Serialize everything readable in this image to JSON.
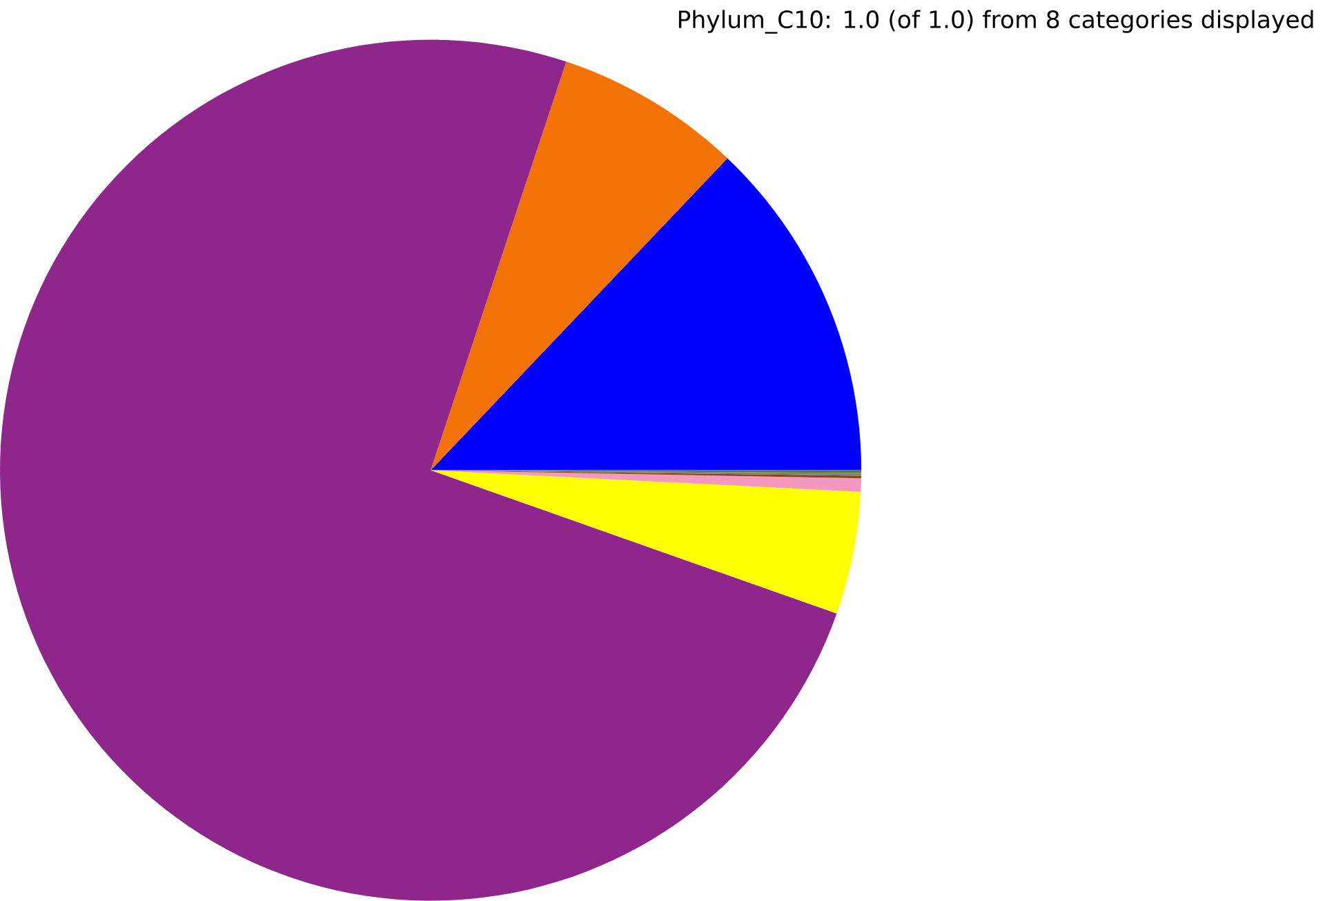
{
  "chart_data": {
    "type": "pie",
    "title": "Phylum_C10: 1.0 (of 1.0) from 8 categories displayed",
    "categories": [
      null,
      null,
      null,
      null,
      null,
      null,
      null,
      null
    ],
    "values": [
      12.9,
      7.0,
      74.7,
      4.6,
      0.5,
      0.1,
      0.1,
      0.1
    ],
    "colors": [
      "#0000ff",
      "#f27205",
      "#8f268b",
      "#ffff00",
      "#f598c0",
      "#8b4513",
      "#808080",
      "#4f7f2f"
    ]
  }
}
